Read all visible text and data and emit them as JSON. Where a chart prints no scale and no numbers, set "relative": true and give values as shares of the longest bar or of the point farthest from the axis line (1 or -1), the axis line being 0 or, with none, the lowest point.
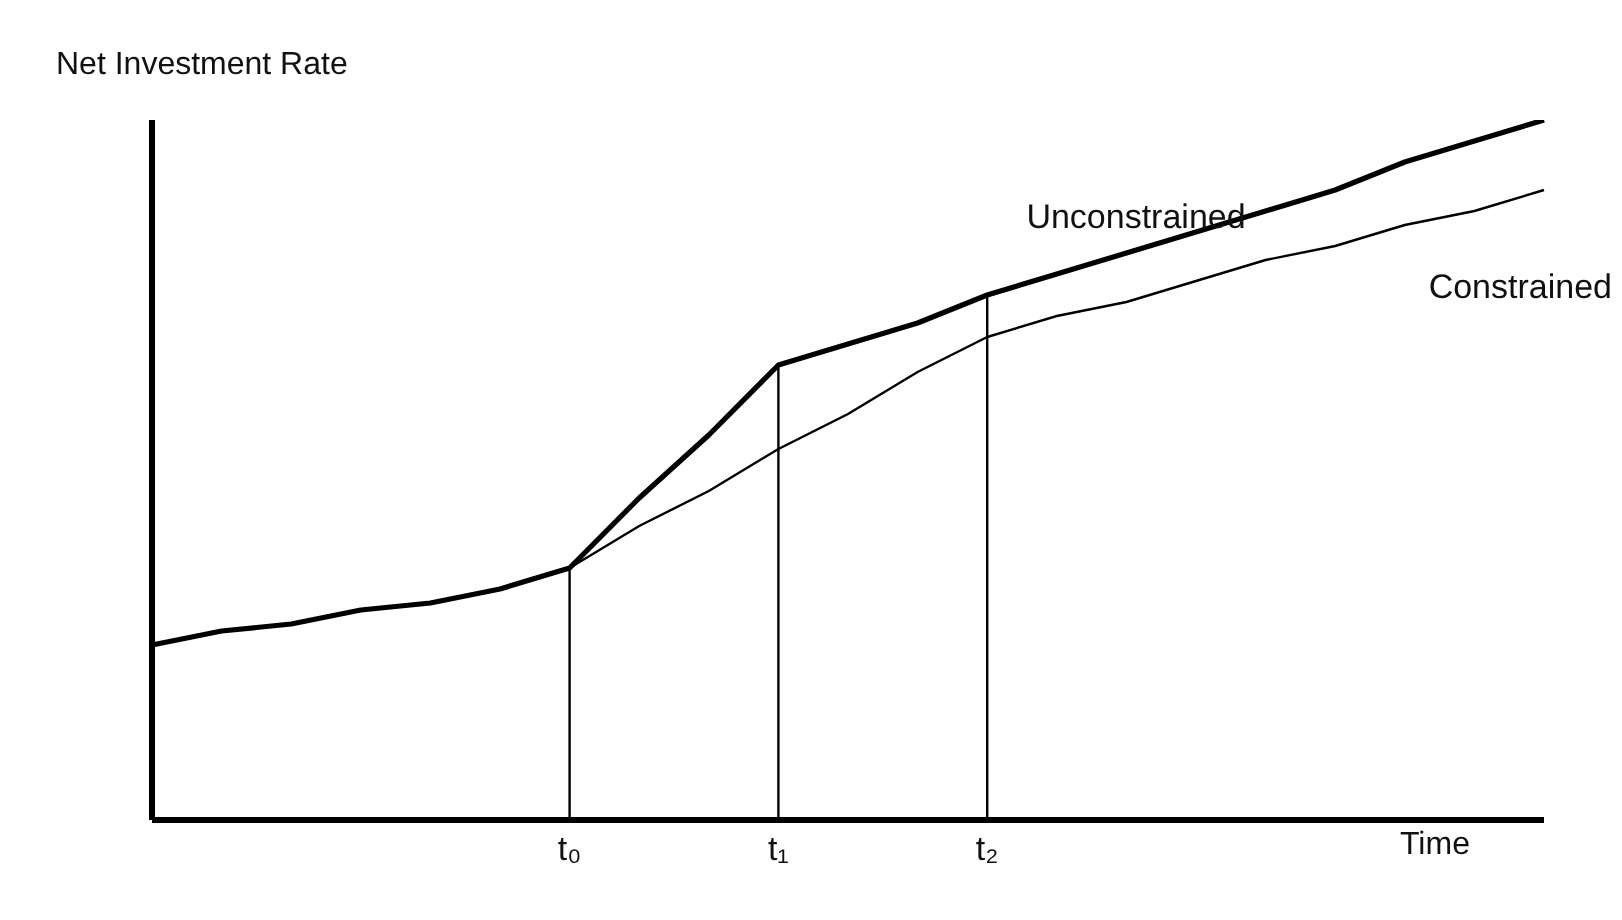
{
  "chart_data": {
    "type": "line",
    "ylabel": "Net Investment Rate",
    "xlabel": "Time",
    "relative": true,
    "legend": false,
    "grid": false,
    "marker": "none",
    "line_style": "solid",
    "categories": [
      null,
      null,
      null,
      null,
      null,
      null,
      "t₀",
      null,
      null,
      "t₁",
      null,
      null,
      "t₂",
      null,
      null,
      null,
      null,
      null,
      null,
      null,
      null
    ],
    "series": [
      {
        "name": "Unconstrained",
        "color": "#000000",
        "values": [
          0.25,
          0.27,
          0.28,
          0.3,
          0.31,
          0.33,
          0.36,
          0.46,
          0.55,
          0.65,
          0.68,
          0.71,
          0.75,
          0.78,
          0.81,
          0.84,
          0.87,
          0.9,
          0.94,
          0.97,
          1
        ]
      },
      {
        "name": "Constrained",
        "color": "#000000",
        "values": [
          null,
          null,
          null,
          null,
          null,
          null,
          0.36,
          0.42,
          0.47,
          0.53,
          0.58,
          0.64,
          0.69,
          0.72,
          0.74,
          0.77,
          0.8,
          0.82,
          0.85,
          0.87,
          0.9
        ]
      }
    ],
    "ref_lines": [
      {
        "axis": "x",
        "value": "t₀",
        "color": "#000000"
      },
      {
        "axis": "x",
        "value": "t₁",
        "color": "#000000"
      },
      {
        "axis": "x",
        "value": "t₂",
        "color": "#000000"
      }
    ]
  }
}
